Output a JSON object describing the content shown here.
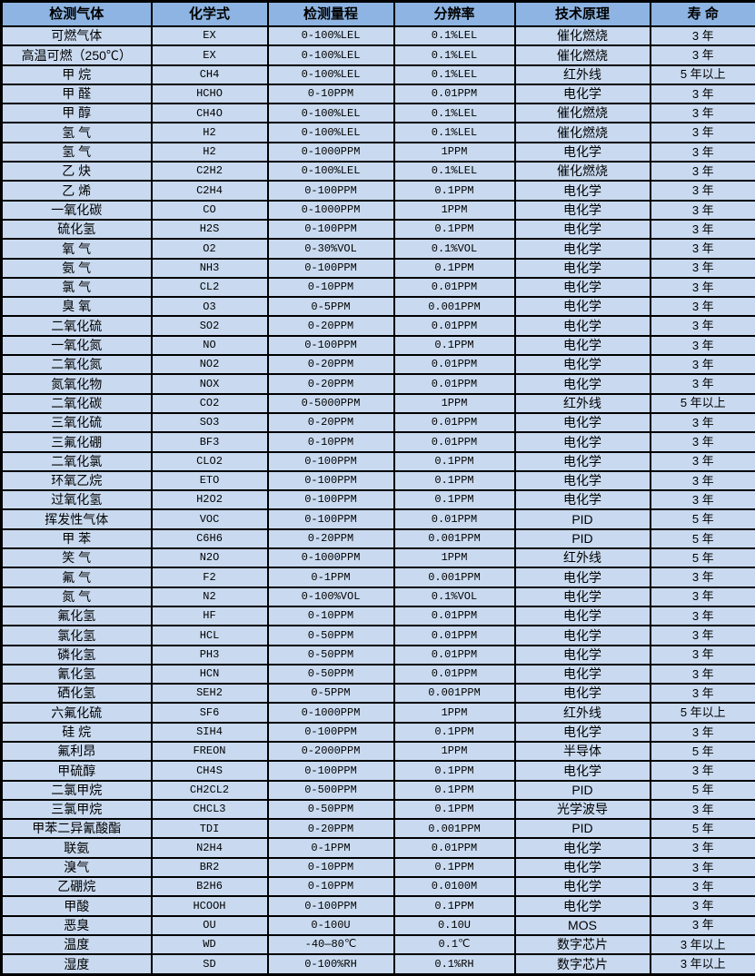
{
  "colors": {
    "header_bg": "#8db4e2",
    "row_bg": "#c9daf0",
    "border": "#000000",
    "text": "#000000"
  },
  "table": {
    "columns": [
      {
        "label": "检测气体"
      },
      {
        "label": "化学式"
      },
      {
        "label": "检测量程"
      },
      {
        "label": "分辨率"
      },
      {
        "label": "技术原理"
      },
      {
        "label": "寿 命"
      }
    ],
    "field_order": [
      "gas",
      "formula",
      "range",
      "resolution",
      "principle",
      "lifespan"
    ],
    "rows": [
      {
        "gas": "可燃气体",
        "formula": "EX",
        "range": "0-100%LEL",
        "resolution": "0.1%LEL",
        "principle": "催化燃烧",
        "lifespan": "3 年"
      },
      {
        "gas": "高温可燃（250℃）",
        "formula": "EX",
        "range": "0-100%LEL",
        "resolution": "0.1%LEL",
        "principle": "催化燃烧",
        "lifespan": "3 年"
      },
      {
        "gas": "甲 烷",
        "formula": "CH4",
        "range": "0-100%LEL",
        "resolution": "0.1%LEL",
        "principle": "红外线",
        "lifespan": "5 年以上"
      },
      {
        "gas": "甲 醛",
        "formula": "HCHO",
        "range": "0-10PPM",
        "resolution": "0.01PPM",
        "principle": "电化学",
        "lifespan": "3 年"
      },
      {
        "gas": "甲 醇",
        "formula": "CH4O",
        "range": "0-100%LEL",
        "resolution": "0.1%LEL",
        "principle": "催化燃烧",
        "lifespan": "3 年"
      },
      {
        "gas": "氢 气",
        "formula": "H2",
        "range": "0-100%LEL",
        "resolution": "0.1%LEL",
        "principle": "催化燃烧",
        "lifespan": "3 年"
      },
      {
        "gas": "氢 气",
        "formula": "H2",
        "range": "0-1000PPM",
        "resolution": "1PPM",
        "principle": "电化学",
        "lifespan": "3 年"
      },
      {
        "gas": "乙 炔",
        "formula": "C2H2",
        "range": "0-100%LEL",
        "resolution": "0.1%LEL",
        "principle": "催化燃烧",
        "lifespan": "3 年"
      },
      {
        "gas": "乙 烯",
        "formula": "C2H4",
        "range": "0-100PPM",
        "resolution": "0.1PPM",
        "principle": "电化学",
        "lifespan": "3 年"
      },
      {
        "gas": "一氧化碳",
        "formula": "CO",
        "range": "0-1000PPM",
        "resolution": "1PPM",
        "principle": "电化学",
        "lifespan": "3 年"
      },
      {
        "gas": "硫化氢",
        "formula": "H2S",
        "range": "0-100PPM",
        "resolution": "0.1PPM",
        "principle": "电化学",
        "lifespan": "3 年"
      },
      {
        "gas": "氧 气",
        "formula": "O2",
        "range": "0-30%VOL",
        "resolution": "0.1%VOL",
        "principle": "电化学",
        "lifespan": "3 年"
      },
      {
        "gas": "氨 气",
        "formula": "NH3",
        "range": "0-100PPM",
        "resolution": "0.1PPM",
        "principle": "电化学",
        "lifespan": "3 年"
      },
      {
        "gas": "氯 气",
        "formula": "CL2",
        "range": "0-10PPM",
        "resolution": "0.01PPM",
        "principle": "电化学",
        "lifespan": "3 年"
      },
      {
        "gas": "臭 氧",
        "formula": "O3",
        "range": "0-5PPM",
        "resolution": "0.001PPM",
        "principle": "电化学",
        "lifespan": "3 年"
      },
      {
        "gas": "二氧化硫",
        "formula": "SO2",
        "range": "0-20PPM",
        "resolution": "0.01PPM",
        "principle": "电化学",
        "lifespan": "3 年"
      },
      {
        "gas": "一氧化氮",
        "formula": "NO",
        "range": "0-100PPM",
        "resolution": "0.1PPM",
        "principle": "电化学",
        "lifespan": "3 年"
      },
      {
        "gas": "二氧化氮",
        "formula": "NO2",
        "range": "0-20PPM",
        "resolution": "0.01PPM",
        "principle": "电化学",
        "lifespan": "3 年"
      },
      {
        "gas": "氮氧化物",
        "formula": "NOX",
        "range": "0-20PPM",
        "resolution": "0.01PPM",
        "principle": "电化学",
        "lifespan": "3 年"
      },
      {
        "gas": "二氧化碳",
        "formula": "CO2",
        "range": "0-5000PPM",
        "resolution": "1PPM",
        "principle": "红外线",
        "lifespan": "5 年以上"
      },
      {
        "gas": "三氧化硫",
        "formula": "SO3",
        "range": "0-20PPM",
        "resolution": "0.01PPM",
        "principle": "电化学",
        "lifespan": "3 年"
      },
      {
        "gas": "三氟化硼",
        "formula": "BF3",
        "range": "0-10PPM",
        "resolution": "0.01PPM",
        "principle": "电化学",
        "lifespan": "3 年"
      },
      {
        "gas": "二氧化氯",
        "formula": "CLO2",
        "range": "0-100PPM",
        "resolution": "0.1PPM",
        "principle": "电化学",
        "lifespan": "3 年"
      },
      {
        "gas": "环氧乙烷",
        "formula": "ETO",
        "range": "0-100PPM",
        "resolution": "0.1PPM",
        "principle": "电化学",
        "lifespan": "3 年"
      },
      {
        "gas": "过氧化氢",
        "formula": "H2O2",
        "range": "0-100PPM",
        "resolution": "0.1PPM",
        "principle": "电化学",
        "lifespan": "3 年"
      },
      {
        "gas": "挥发性气体",
        "formula": "VOC",
        "range": "0-100PPM",
        "resolution": "0.01PPM",
        "principle": "PID",
        "lifespan": "5 年"
      },
      {
        "gas": "甲 苯",
        "formula": "C6H6",
        "range": "0-20PPM",
        "resolution": "0.001PPM",
        "principle": "PID",
        "lifespan": "5 年"
      },
      {
        "gas": "笑 气",
        "formula": "N2O",
        "range": "0-1000PPM",
        "resolution": "1PPM",
        "principle": "红外线",
        "lifespan": "5 年"
      },
      {
        "gas": "氟 气",
        "formula": "F2",
        "range": "0-1PPM",
        "resolution": "0.001PPM",
        "principle": "电化学",
        "lifespan": "3 年"
      },
      {
        "gas": "氮 气",
        "formula": "N2",
        "range": "0-100%VOL",
        "resolution": "0.1%VOL",
        "principle": "电化学",
        "lifespan": "3 年"
      },
      {
        "gas": "氟化氢",
        "formula": "HF",
        "range": "0-10PPM",
        "resolution": "0.01PPM",
        "principle": "电化学",
        "lifespan": "3 年"
      },
      {
        "gas": "氯化氢",
        "formula": "HCL",
        "range": "0-50PPM",
        "resolution": "0.01PPM",
        "principle": "电化学",
        "lifespan": "3 年"
      },
      {
        "gas": "磷化氢",
        "formula": "PH3",
        "range": "0-50PPM",
        "resolution": "0.01PPM",
        "principle": "电化学",
        "lifespan": "3 年"
      },
      {
        "gas": "氰化氢",
        "formula": "HCN",
        "range": "0-50PPM",
        "resolution": "0.01PPM",
        "principle": "电化学",
        "lifespan": "3 年"
      },
      {
        "gas": "硒化氢",
        "formula": "SEH2",
        "range": "0-5PPM",
        "resolution": "0.001PPM",
        "principle": "电化学",
        "lifespan": "3 年"
      },
      {
        "gas": "六氟化硫",
        "formula": "SF6",
        "range": "0-1000PPM",
        "resolution": "1PPM",
        "principle": "红外线",
        "lifespan": "5 年以上"
      },
      {
        "gas": "硅 烷",
        "formula": "SIH4",
        "range": "0-100PPM",
        "resolution": "0.1PPM",
        "principle": "电化学",
        "lifespan": "3 年"
      },
      {
        "gas": "氟利昂",
        "formula": "FREON",
        "range": "0-2000PPM",
        "resolution": "1PPM",
        "principle": "半导体",
        "lifespan": "5 年"
      },
      {
        "gas": "甲硫醇",
        "formula": "CH4S",
        "range": "0-100PPM",
        "resolution": "0.1PPM",
        "principle": "电化学",
        "lifespan": "3 年"
      },
      {
        "gas": "二氯甲烷",
        "formula": "CH2CL2",
        "range": "0-500PPM",
        "resolution": "0.1PPM",
        "principle": "PID",
        "lifespan": "5 年"
      },
      {
        "gas": "三氯甲烷",
        "formula": "CHCL3",
        "range": "0-50PPM",
        "resolution": "0.1PPM",
        "principle": "光学波导",
        "lifespan": "3 年"
      },
      {
        "gas": "甲苯二异氰酸酯",
        "formula": "TDI",
        "range": "0-20PPM",
        "resolution": "0.001PPM",
        "principle": "PID",
        "lifespan": "5 年"
      },
      {
        "gas": "联氨",
        "formula": "N2H4",
        "range": "0-1PPM",
        "resolution": "0.01PPM",
        "principle": "电化学",
        "lifespan": "3 年"
      },
      {
        "gas": "溴气",
        "formula": "BR2",
        "range": "0-10PPM",
        "resolution": "0.1PPM",
        "principle": "电化学",
        "lifespan": "3 年"
      },
      {
        "gas": "乙硼烷",
        "formula": "B2H6",
        "range": "0-10PPM",
        "resolution": "0.0100M",
        "principle": "电化学",
        "lifespan": "3 年"
      },
      {
        "gas": "甲酸",
        "formula": "HCOOH",
        "range": "0-100PPM",
        "resolution": "0.1PPM",
        "principle": "电化学",
        "lifespan": "3 年"
      },
      {
        "gas": "恶臭",
        "formula": "OU",
        "range": "0-100U",
        "resolution": "0.10U",
        "principle": "MOS",
        "lifespan": "3 年"
      },
      {
        "gas": "温度",
        "formula": "WD",
        "range": "-40—80℃",
        "resolution": "0.1℃",
        "principle": "数字芯片",
        "lifespan": "3 年以上"
      },
      {
        "gas": "湿度",
        "formula": "SD",
        "range": "0-100%RH",
        "resolution": "0.1%RH",
        "principle": "数字芯片",
        "lifespan": "3 年以上"
      }
    ]
  }
}
